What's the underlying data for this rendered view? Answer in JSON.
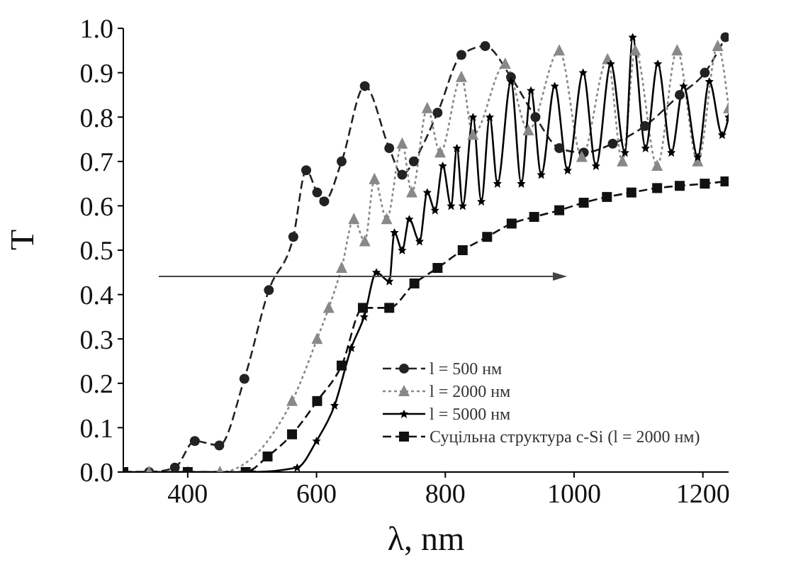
{
  "chart_data": {
    "type": "line",
    "xlabel": "λ, nm",
    "ylabel": "T",
    "xlim": [
      300,
      1240
    ],
    "xticks": [
      400,
      600,
      800,
      1000,
      1200
    ],
    "ylim": [
      0,
      1.0
    ],
    "yticks": [
      {
        "value": 0,
        "label": "0.0"
      },
      {
        "value": 0.1,
        "label": "0.1"
      },
      {
        "value": 0.2,
        "label": "0.2"
      },
      {
        "value": 0.3,
        "label": "0.3"
      },
      {
        "value": 0.4,
        "label": "0.4"
      },
      {
        "value": 0.5,
        "label": "0.5"
      },
      {
        "value": 0.6,
        "label": "0.6"
      },
      {
        "value": 0.7,
        "label": "0.7"
      },
      {
        "value": 0.8,
        "label": "0.8"
      },
      {
        "value": 0.9,
        "label": "0.9"
      },
      {
        "value": 1.0,
        "label": "1.0"
      }
    ],
    "grid": false,
    "legend": "bottom right",
    "series": [
      {
        "name": "l = 500 нм",
        "color": "#222222",
        "marker": "circle",
        "line_style": "dashed",
        "x": [
          300,
          340,
          380,
          411,
          449,
          488,
          526,
          564,
          584,
          601,
          612,
          639,
          675,
          713,
          733,
          751,
          788,
          825,
          862,
          902,
          940,
          977,
          1015,
          1060,
          1110,
          1164,
          1203,
          1235
        ],
        "values": [
          0,
          0,
          0.01,
          0.07,
          0.06,
          0.21,
          0.41,
          0.53,
          0.68,
          0.63,
          0.61,
          0.7,
          0.87,
          0.73,
          0.67,
          0.7,
          0.81,
          0.94,
          0.96,
          0.89,
          0.8,
          0.73,
          0.72,
          0.74,
          0.78,
          0.85,
          0.9,
          0.98
        ]
      },
      {
        "name": "l = 2000 нм",
        "color": "#888888",
        "marker": "triangle",
        "line_style": "dotted",
        "x": [
          300,
          340,
          400,
          450,
          562,
          601,
          619,
          639,
          658,
          675,
          690,
          709,
          733,
          748,
          772,
          792,
          825,
          843,
          893,
          929,
          977,
          1012,
          1052,
          1075,
          1095,
          1129,
          1160,
          1192,
          1223,
          1240
        ],
        "values": [
          0,
          0,
          0,
          0,
          0.16,
          0.3,
          0.37,
          0.46,
          0.57,
          0.52,
          0.66,
          0.57,
          0.74,
          0.63,
          0.82,
          0.72,
          0.89,
          0.76,
          0.92,
          0.77,
          0.95,
          0.71,
          0.93,
          0.7,
          0.95,
          0.69,
          0.95,
          0.7,
          0.96,
          0.82
        ]
      },
      {
        "name": "l = 5000 нм",
        "color": "#000000",
        "marker": "star",
        "line_style": "solid",
        "x": [
          300,
          400,
          500,
          570,
          600,
          628,
          654,
          674,
          693,
          713,
          721,
          733,
          744,
          760,
          772,
          784,
          796,
          809,
          818,
          827,
          843,
          856,
          869,
          881,
          902,
          918,
          933,
          949,
          970,
          990,
          1014,
          1034,
          1057,
          1079,
          1091,
          1111,
          1130,
          1151,
          1170,
          1192,
          1210,
          1230,
          1240
        ],
        "values": [
          0,
          0,
          0,
          0.01,
          0.07,
          0.15,
          0.28,
          0.35,
          0.45,
          0.43,
          0.54,
          0.5,
          0.57,
          0.52,
          0.63,
          0.59,
          0.69,
          0.6,
          0.73,
          0.6,
          0.8,
          0.61,
          0.8,
          0.65,
          0.88,
          0.65,
          0.86,
          0.67,
          0.87,
          0.68,
          0.9,
          0.69,
          0.92,
          0.72,
          0.98,
          0.73,
          0.92,
          0.72,
          0.87,
          0.71,
          0.88,
          0.76,
          0.8
        ]
      },
      {
        "name": "Суцільна структура c-Si (l = 2000 нм)",
        "color": "#111111",
        "marker": "square",
        "line_style": "dashed",
        "x": [
          300,
          400,
          490,
          524,
          562,
          601,
          639,
          672,
          713,
          752,
          788,
          827,
          865,
          903,
          938,
          977,
          1015,
          1051,
          1089,
          1129,
          1164,
          1203,
          1235
        ],
        "values": [
          0,
          0,
          0,
          0.035,
          0.085,
          0.16,
          0.24,
          0.37,
          0.37,
          0.425,
          0.46,
          0.5,
          0.53,
          0.56,
          0.575,
          0.59,
          0.607,
          0.62,
          0.63,
          0.64,
          0.645,
          0.65,
          0.655
        ]
      }
    ]
  }
}
